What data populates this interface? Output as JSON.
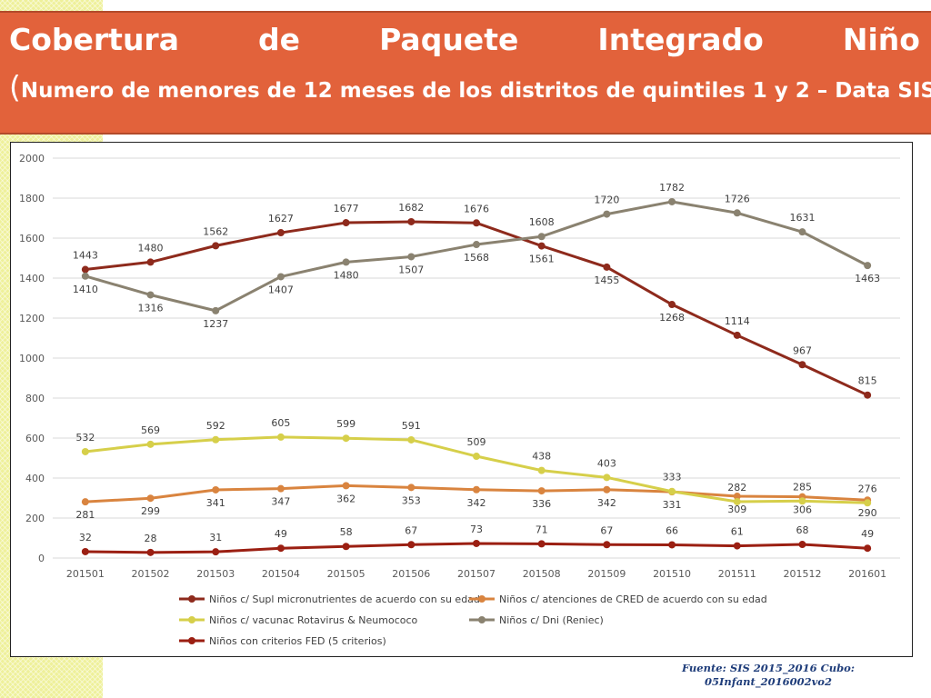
{
  "title": {
    "line1_words": [
      "Cobertura",
      "de",
      "Paquete",
      "Integrado",
      "Niño"
    ],
    "line2": "Numero de menores de 12 meses de los distritos de quintiles 1 y 2 – Data SIS"
  },
  "source": {
    "line1": "Fuente: SIS 2015_2016 Cubo:",
    "line2": "05Infant_2016002vo2"
  },
  "chart_data": {
    "type": "line",
    "categories": [
      "201501",
      "201502",
      "201503",
      "201504",
      "201505",
      "201506",
      "201507",
      "201508",
      "201509",
      "201510",
      "201511",
      "201512",
      "201601"
    ],
    "ylim": [
      0,
      2000
    ],
    "yticks": [
      0,
      200,
      400,
      600,
      800,
      1000,
      1200,
      1400,
      1600,
      1800,
      2000
    ],
    "grid": true,
    "legend_position": "bottom",
    "series": [
      {
        "name": "Niños c/ Supl micronutrientes de acuerdo con su edad",
        "color": "#8e2a1c",
        "values": [
          1443,
          1480,
          1562,
          1627,
          1677,
          1682,
          1676,
          1561,
          1455,
          1268,
          1114,
          967,
          815
        ]
      },
      {
        "name": "Niños c/ atenciones de CRED de acuerdo con su edad",
        "color": "#d9843f",
        "values": [
          281,
          299,
          341,
          347,
          362,
          353,
          342,
          336,
          342,
          331,
          309,
          306,
          290
        ]
      },
      {
        "name": "Niños c/ vacunac Rotavirus & Neumococo",
        "color": "#d6cf4a",
        "values": [
          532,
          569,
          592,
          605,
          599,
          591,
          509,
          438,
          403,
          333,
          282,
          285,
          276
        ]
      },
      {
        "name": "Niños c/ Dni (Reniec)",
        "color": "#8a8270",
        "values": [
          1410,
          1316,
          1237,
          1407,
          1480,
          1507,
          1568,
          1608,
          1720,
          1782,
          1726,
          1631,
          1463
        ]
      },
      {
        "name": "Niños con criterios FED (5 criterios)",
        "color": "#9b1f12",
        "values": [
          32,
          28,
          31,
          49,
          58,
          67,
          73,
          71,
          67,
          66,
          61,
          68,
          49
        ]
      }
    ]
  }
}
